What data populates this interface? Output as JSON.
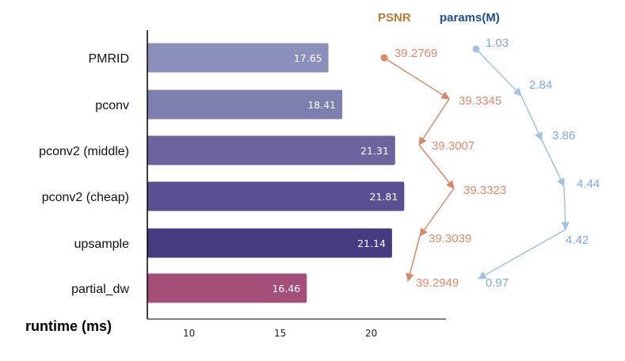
{
  "chart_data": {
    "type": "bar",
    "orientation": "horizontal",
    "categories": [
      "PMRID",
      "pconv",
      "pconv2 (middle)",
      "pconv2 (cheap)",
      "upsample",
      "partial_dw"
    ],
    "series": [
      {
        "values": [
          17.65,
          18.41,
          21.31,
          21.81,
          21.14,
          16.46
        ],
        "value_labels": [
          "17.65",
          "18.41",
          "21.31",
          "21.81",
          "21.14",
          "16.46"
        ],
        "colors": [
          "#8a8fbc",
          "#7e7fb1",
          "#6a659f",
          "#5a5093",
          "#463a80",
          "#a54e78"
        ]
      }
    ],
    "xlabel": "runtime (ms)",
    "xlim": [
      6,
      24.1
    ],
    "xticks": [
      10,
      15,
      20
    ],
    "grid": false,
    "annotations": {
      "psnr": {
        "title": "PSNR",
        "color": "#d9896a",
        "title_color": "#c07a30",
        "values": [
          "39.2769",
          "39.3345",
          "39.3007",
          "39.3323",
          "39.3039",
          "39.2949"
        ]
      },
      "params": {
        "title": "params(M)",
        "color": "#a3c1e6",
        "title_color": "#1f4e9c",
        "label_color": "#7fa6d8",
        "values": [
          "1.03",
          "2.84",
          "3.86",
          "4.44",
          "4.42",
          "0.97"
        ]
      }
    }
  }
}
